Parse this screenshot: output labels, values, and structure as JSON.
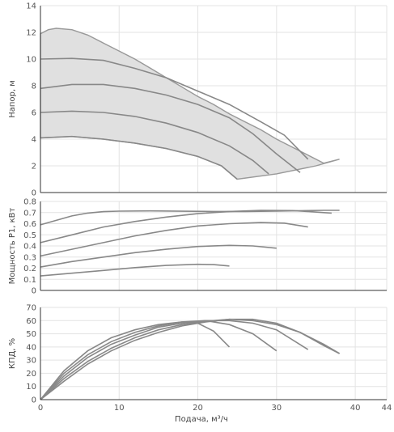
{
  "chart_data": [
    {
      "type": "area",
      "ylabel": "Напор, м",
      "xlim": [
        0,
        44
      ],
      "ylim": [
        0,
        14
      ],
      "yticks": [
        0,
        2,
        4,
        6,
        8,
        10,
        12,
        14
      ],
      "grid": true,
      "colors": {
        "fill": "#e0e0e0",
        "curve": "#888888"
      },
      "envelope": {
        "upper": [
          [
            0,
            11.9
          ],
          [
            1,
            12.2
          ],
          [
            2,
            12.3
          ],
          [
            4,
            12.2
          ],
          [
            6,
            11.8
          ],
          [
            8,
            11.2
          ],
          [
            10,
            10.6
          ],
          [
            12,
            10.0
          ],
          [
            14,
            9.3
          ],
          [
            16,
            8.6
          ],
          [
            18,
            7.9
          ],
          [
            20,
            7.2
          ],
          [
            22,
            6.6
          ],
          [
            24,
            5.9
          ],
          [
            26,
            5.3
          ],
          [
            28,
            4.7
          ],
          [
            30,
            4.0
          ],
          [
            32,
            3.4
          ],
          [
            34,
            2.8
          ],
          [
            36,
            2.2
          ],
          [
            38,
            2.5
          ]
        ],
        "lower": [
          [
            25,
            1.0
          ],
          [
            30,
            1.4
          ],
          [
            35,
            2.0
          ],
          [
            38,
            2.5
          ]
        ]
      },
      "series": [
        {
          "points": [
            [
              0,
              10.0
            ],
            [
              4,
              10.05
            ],
            [
              8,
              9.9
            ],
            [
              12,
              9.3
            ],
            [
              16,
              8.6
            ],
            [
              20,
              7.6
            ],
            [
              24,
              6.6
            ],
            [
              28,
              5.3
            ],
            [
              31,
              4.3
            ],
            [
              34,
              2.5
            ]
          ]
        },
        {
          "points": [
            [
              0,
              7.8
            ],
            [
              4,
              8.1
            ],
            [
              8,
              8.1
            ],
            [
              12,
              7.8
            ],
            [
              16,
              7.3
            ],
            [
              20,
              6.6
            ],
            [
              24,
              5.6
            ],
            [
              27,
              4.4
            ],
            [
              30,
              2.9
            ],
            [
              33,
              1.5
            ]
          ]
        },
        {
          "points": [
            [
              0,
              6.0
            ],
            [
              4,
              6.1
            ],
            [
              8,
              6.0
            ],
            [
              12,
              5.7
            ],
            [
              16,
              5.2
            ],
            [
              20,
              4.5
            ],
            [
              24,
              3.5
            ],
            [
              27,
              2.4
            ],
            [
              29,
              1.4
            ]
          ]
        },
        {
          "points": [
            [
              0,
              4.1
            ],
            [
              4,
              4.2
            ],
            [
              8,
              4.0
            ],
            [
              12,
              3.7
            ],
            [
              16,
              3.3
            ],
            [
              20,
              2.7
            ],
            [
              23,
              2.0
            ],
            [
              25,
              1.0
            ]
          ]
        }
      ]
    },
    {
      "type": "line",
      "ylabel": "Мощность P1, кВт",
      "xlim": [
        0,
        44
      ],
      "ylim": [
        0,
        0.8
      ],
      "yticks": [
        0,
        0.1,
        0.2,
        0.3,
        0.4,
        0.5,
        0.6,
        0.7,
        0.8
      ],
      "grid": true,
      "series": [
        {
          "points": [
            [
              0,
              0.59
            ],
            [
              2,
              0.63
            ],
            [
              4,
              0.67
            ],
            [
              6,
              0.695
            ],
            [
              8,
              0.708
            ],
            [
              10,
              0.713
            ],
            [
              14,
              0.715
            ],
            [
              18,
              0.712
            ],
            [
              22,
              0.71
            ],
            [
              26,
              0.71
            ],
            [
              30,
              0.713
            ],
            [
              34,
              0.718
            ],
            [
              36,
              0.72
            ],
            [
              38,
              0.72
            ]
          ]
        },
        {
          "points": [
            [
              0,
              0.43
            ],
            [
              4,
              0.5
            ],
            [
              8,
              0.57
            ],
            [
              12,
              0.62
            ],
            [
              16,
              0.66
            ],
            [
              20,
              0.69
            ],
            [
              24,
              0.71
            ],
            [
              28,
              0.72
            ],
            [
              32,
              0.718
            ],
            [
              34,
              0.71
            ],
            [
              36,
              0.7
            ],
            [
              37,
              0.695
            ]
          ]
        },
        {
          "points": [
            [
              0,
              0.31
            ],
            [
              4,
              0.37
            ],
            [
              8,
              0.43
            ],
            [
              12,
              0.49
            ],
            [
              16,
              0.54
            ],
            [
              20,
              0.58
            ],
            [
              24,
              0.6
            ],
            [
              28,
              0.61
            ],
            [
              31,
              0.605
            ],
            [
              34,
              0.57
            ]
          ]
        },
        {
          "points": [
            [
              0,
              0.21
            ],
            [
              4,
              0.26
            ],
            [
              8,
              0.3
            ],
            [
              12,
              0.34
            ],
            [
              16,
              0.37
            ],
            [
              20,
              0.395
            ],
            [
              24,
              0.405
            ],
            [
              27,
              0.4
            ],
            [
              30,
              0.38
            ]
          ]
        },
        {
          "points": [
            [
              0,
              0.13
            ],
            [
              4,
              0.155
            ],
            [
              8,
              0.18
            ],
            [
              12,
              0.205
            ],
            [
              16,
              0.225
            ],
            [
              20,
              0.235
            ],
            [
              22,
              0.232
            ],
            [
              24,
              0.22
            ]
          ]
        }
      ]
    },
    {
      "type": "line",
      "ylabel": "КПД, %",
      "xlabel": "Подача, м³/ч",
      "xlim": [
        0,
        44
      ],
      "xticks": [
        0,
        10,
        20,
        30,
        40,
        44
      ],
      "ylim": [
        0,
        70
      ],
      "yticks": [
        0,
        10,
        20,
        30,
        40,
        50,
        60,
        70
      ],
      "grid": true,
      "series": [
        {
          "points": [
            [
              0,
              0
            ],
            [
              3,
              22
            ],
            [
              6,
              37
            ],
            [
              9,
              47
            ],
            [
              12,
              53
            ],
            [
              15,
              57
            ],
            [
              18,
              59
            ],
            [
              20,
              58
            ],
            [
              22,
              52
            ],
            [
              24,
              40
            ]
          ]
        },
        {
          "points": [
            [
              0,
              0
            ],
            [
              3,
              20
            ],
            [
              6,
              34
            ],
            [
              9,
              44
            ],
            [
              12,
              51
            ],
            [
              15,
              56
            ],
            [
              18,
              59
            ],
            [
              21,
              60
            ],
            [
              24,
              57
            ],
            [
              27,
              50
            ],
            [
              30,
              37
            ]
          ]
        },
        {
          "points": [
            [
              0,
              0
            ],
            [
              3,
              18
            ],
            [
              6,
              32
            ],
            [
              9,
              42
            ],
            [
              12,
              49
            ],
            [
              15,
              55
            ],
            [
              18,
              58
            ],
            [
              21,
              60
            ],
            [
              24,
              60
            ],
            [
              27,
              58
            ],
            [
              30,
              53
            ],
            [
              34,
              38
            ]
          ]
        },
        {
          "points": [
            [
              0,
              0
            ],
            [
              3,
              16
            ],
            [
              6,
              29
            ],
            [
              9,
              39
            ],
            [
              12,
              47
            ],
            [
              15,
              53
            ],
            [
              18,
              57
            ],
            [
              21,
              59.5
            ],
            [
              24,
              61
            ],
            [
              27,
              60
            ],
            [
              30,
              57
            ],
            [
              33,
              51
            ],
            [
              36,
              42
            ],
            [
              38,
              35
            ]
          ]
        },
        {
          "points": [
            [
              0,
              0
            ],
            [
              3,
              14
            ],
            [
              6,
              27
            ],
            [
              9,
              37
            ],
            [
              12,
              45
            ],
            [
              15,
              51
            ],
            [
              18,
              56
            ],
            [
              21,
              59
            ],
            [
              24,
              61
            ],
            [
              27,
              61
            ],
            [
              30,
              58
            ],
            [
              33,
              51
            ],
            [
              36,
              41
            ],
            [
              38,
              35
            ]
          ]
        }
      ]
    }
  ]
}
